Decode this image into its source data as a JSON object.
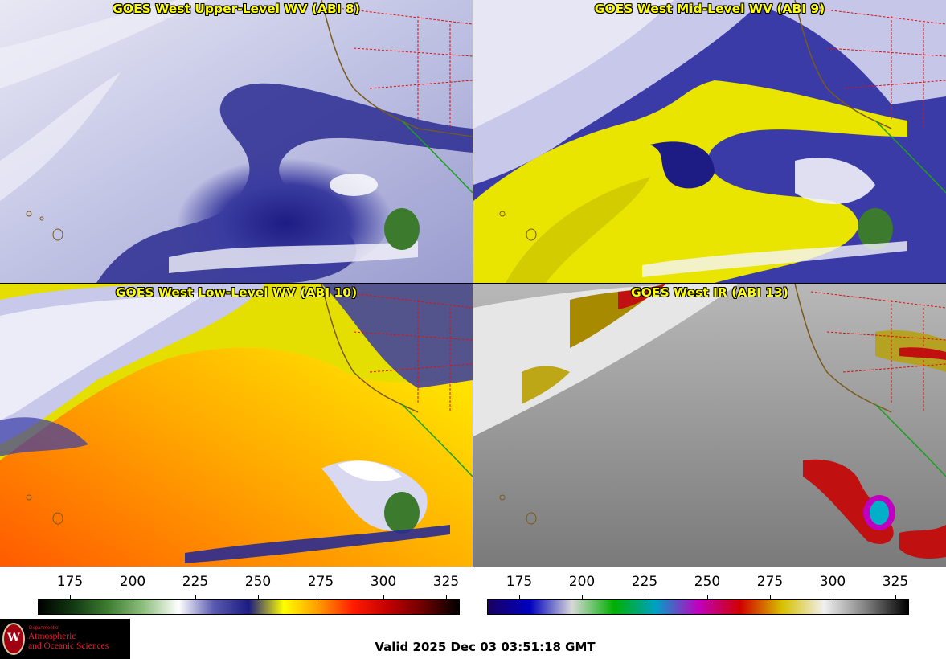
{
  "panels": [
    {
      "title": "GOES West Upper-Level WV (ABI 8)",
      "product": "water-vapor-upper"
    },
    {
      "title": "GOES West Mid-Level WV (ABI 9)",
      "product": "water-vapor-mid"
    },
    {
      "title": "GOES West Low-Level WV (ABI 10)",
      "product": "water-vapor-low"
    },
    {
      "title": "GOES West IR (ABI 13)",
      "product": "infrared"
    }
  ],
  "colorbars": {
    "wv": {
      "ticks": [
        "175",
        "200",
        "225",
        "250",
        "275",
        "300",
        "325"
      ],
      "colors": [
        "#000000",
        "#123a12",
        "#3f7f32",
        "#8fbf7f",
        "#ffffff",
        "#5a5ab0",
        "#1b1b82",
        "#ffff00",
        "#ff9a00",
        "#ff1a00",
        "#c00000",
        "#6a0000",
        "#000000"
      ]
    },
    "ir": {
      "ticks": [
        "175",
        "200",
        "225",
        "250",
        "275",
        "300",
        "325"
      ],
      "colors": [
        "#1a0060",
        "#0000c0",
        "#d8d8d8",
        "#00b000",
        "#00a0c8",
        "#c000c0",
        "#d00000",
        "#d8c000",
        "#f0f0f0",
        "#808080",
        "#000000"
      ]
    }
  },
  "logo": {
    "dept_line": "Department of",
    "line1": "Atmospheric",
    "line2": "and Oceanic Sciences",
    "seal_letter": "W"
  },
  "valid_text": "Valid 2025 Dec 03 03:51:18 GMT"
}
